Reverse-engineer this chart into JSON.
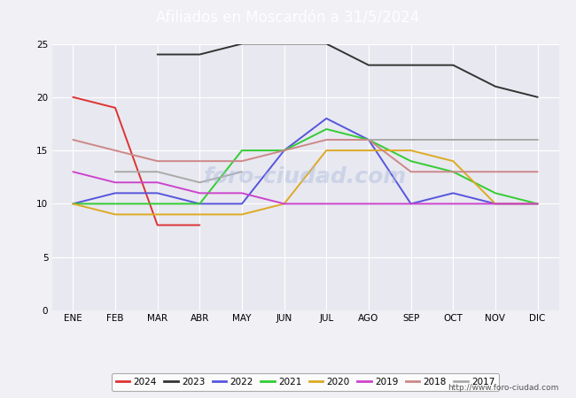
{
  "title": "Afiliados en Moscardón a 31/5/2024",
  "title_color": "white",
  "title_bg_color": "#5599cc",
  "months": [
    "ENE",
    "FEB",
    "MAR",
    "ABR",
    "MAY",
    "JUN",
    "JUL",
    "AGO",
    "SEP",
    "OCT",
    "NOV",
    "DIC"
  ],
  "ylim": [
    0,
    25
  ],
  "yticks": [
    0,
    5,
    10,
    15,
    20,
    25
  ],
  "series": {
    "2024": {
      "color": "#dd3333",
      "data": [
        20,
        19,
        8,
        8,
        null,
        null,
        null,
        null,
        null,
        null,
        null,
        null
      ]
    },
    "2023": {
      "color": "#333333",
      "data": [
        null,
        null,
        24,
        24,
        25,
        25,
        25,
        23,
        23,
        23,
        21,
        20
      ]
    },
    "2022": {
      "color": "#5555dd",
      "data": [
        10,
        11,
        11,
        10,
        10,
        15,
        18,
        16,
        10,
        11,
        10,
        10
      ]
    },
    "2021": {
      "color": "#33cc33",
      "data": [
        10,
        10,
        10,
        10,
        15,
        15,
        17,
        16,
        14,
        13,
        11,
        10
      ]
    },
    "2020": {
      "color": "#ddaa22",
      "data": [
        10,
        9,
        9,
        9,
        9,
        10,
        15,
        15,
        15,
        14,
        10,
        10
      ]
    },
    "2019": {
      "color": "#cc44cc",
      "data": [
        13,
        12,
        12,
        11,
        11,
        10,
        10,
        10,
        10,
        10,
        10,
        10
      ]
    },
    "2018": {
      "color": "#cc8888",
      "data": [
        16,
        15,
        14,
        14,
        14,
        15,
        16,
        16,
        13,
        13,
        13,
        13
      ]
    },
    "2017": {
      "color": "#aaaaaa",
      "data": [
        null,
        13,
        13,
        12,
        13,
        null,
        null,
        16,
        16,
        16,
        16,
        16
      ]
    }
  },
  "bg_color": "#f0f0f5",
  "plot_bg_color": "#e8e8f0",
  "grid_color": "white",
  "watermark": "foro-ciudad.com",
  "footer_url": "http://www.foro-ciudad.com",
  "legend_order": [
    "2024",
    "2023",
    "2022",
    "2021",
    "2020",
    "2019",
    "2018",
    "2017"
  ]
}
